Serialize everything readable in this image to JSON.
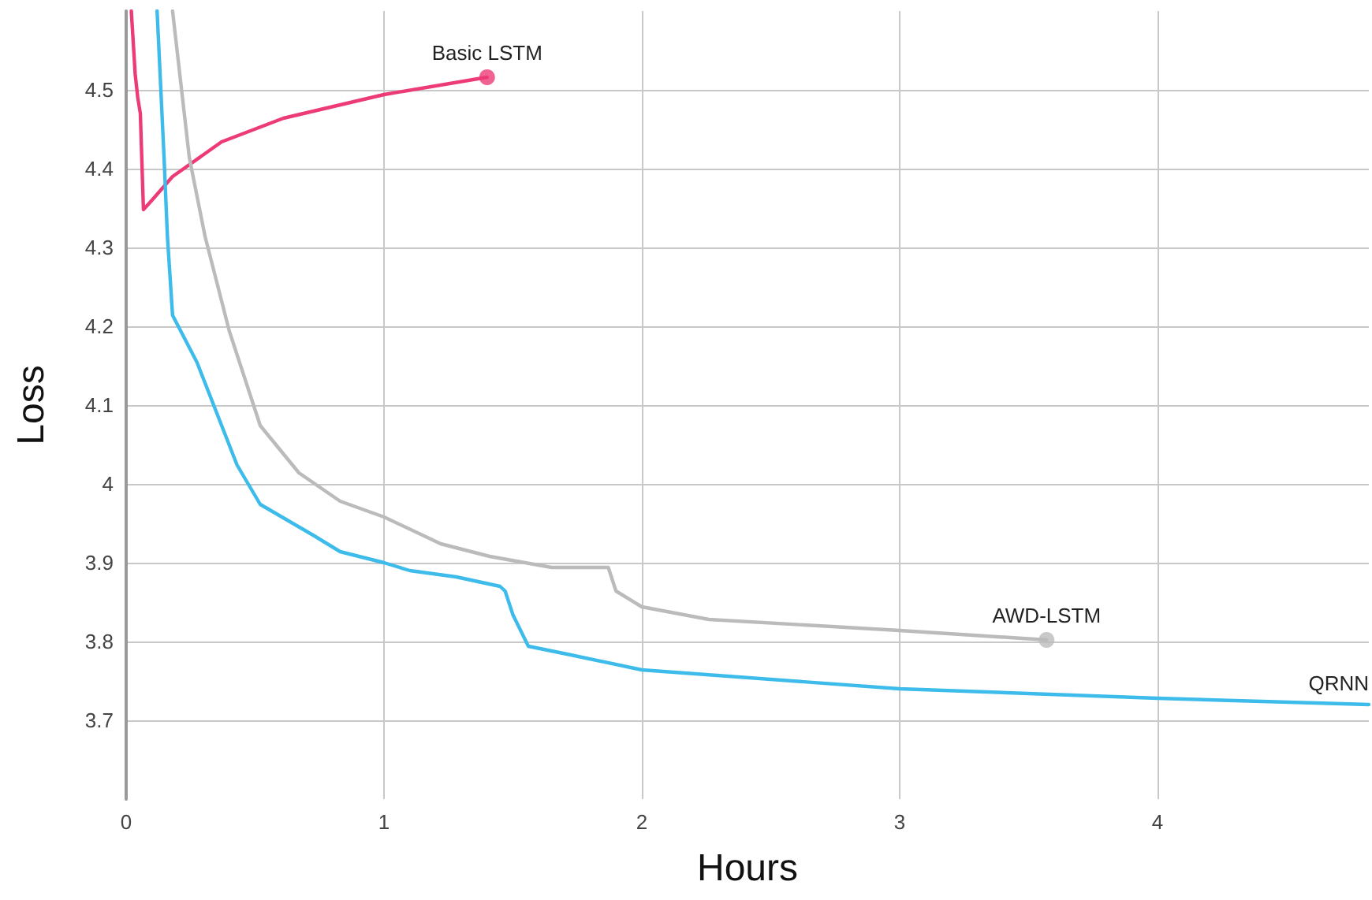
{
  "chart_data": {
    "type": "line",
    "xlabel": "Hours",
    "ylabel": "Loss",
    "xlim": [
      0,
      4.82
    ],
    "ylim": [
      3.6,
      4.6
    ],
    "xticks": [
      0,
      1,
      2,
      3,
      4
    ],
    "yticks": [
      3.7,
      3.8,
      3.9,
      4,
      4.1,
      4.2,
      4.3,
      4.4,
      4.5
    ],
    "grid": true,
    "legend": false,
    "line_style": "solid",
    "marker": "none",
    "series": [
      {
        "name": "Basic LSTM",
        "color": "#ec3b77",
        "x": [
          0.02,
          0.035,
          0.045,
          0.055,
          0.067,
          0.1,
          0.18,
          0.37,
          0.61,
          1.0,
          1.4
        ],
        "values": [
          4.6,
          4.52,
          4.49,
          4.47,
          4.348,
          4.36,
          4.39,
          4.434,
          4.464,
          4.494,
          4.516
        ]
      },
      {
        "name": "AWD-LSTM",
        "color": "#bbbbbb",
        "x": [
          0.18,
          0.245,
          0.306,
          0.4,
          0.52,
          0.67,
          0.83,
          1.0,
          1.22,
          1.41,
          1.65,
          1.87,
          1.9,
          2.0,
          2.26,
          3.0,
          3.57
        ],
        "values": [
          4.6,
          4.414,
          4.314,
          4.194,
          4.074,
          4.014,
          3.978,
          3.958,
          3.924,
          3.908,
          3.894,
          3.894,
          3.864,
          3.844,
          3.828,
          3.814,
          3.802
        ]
      },
      {
        "name": "QRNN",
        "color": "#3dbbea",
        "x": [
          0.12,
          0.147,
          0.16,
          0.18,
          0.275,
          0.43,
          0.52,
          0.73,
          0.83,
          1.0,
          1.1,
          1.28,
          1.45,
          1.47,
          1.5,
          1.56,
          1.71,
          2.0,
          3.0,
          4.0,
          4.82
        ],
        "values": [
          4.6,
          4.414,
          4.314,
          4.214,
          4.154,
          4.024,
          3.974,
          3.934,
          3.914,
          3.9,
          3.89,
          3.882,
          3.87,
          3.864,
          3.834,
          3.794,
          3.784,
          3.764,
          3.74,
          3.728,
          3.72
        ]
      },
      {
        "type": "scatter",
        "color": "#ec3b77",
        "marker": "circle",
        "x": [
          1.4
        ],
        "values": [
          4.516
        ]
      },
      {
        "type": "scatter",
        "color": "#bbbbbb",
        "marker": "circle",
        "x": [
          3.57
        ],
        "values": [
          3.802
        ]
      }
    ]
  }
}
